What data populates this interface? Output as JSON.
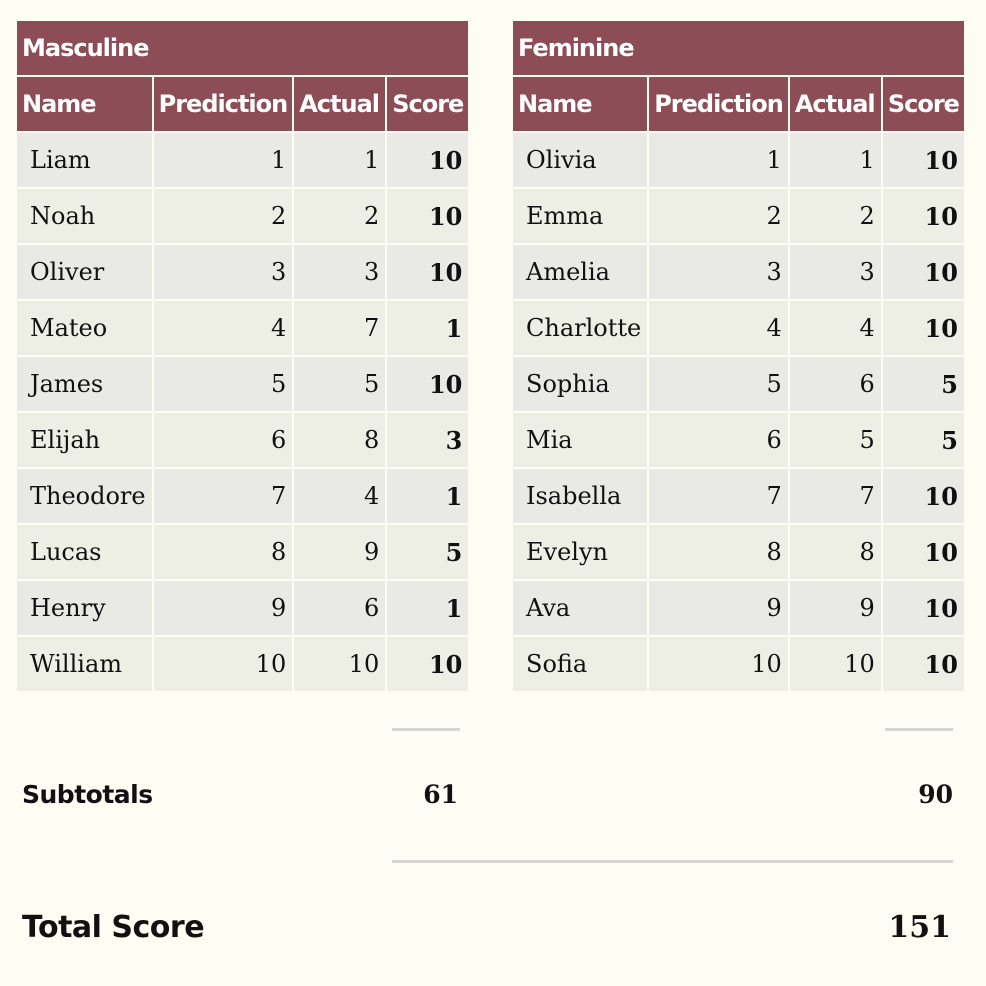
{
  "masculine": {
    "title": "Masculine",
    "headers": [
      "Name",
      "Prediction",
      "Actual",
      "Score"
    ],
    "rows": [
      [
        "Liam",
        "1",
        "1",
        "10"
      ],
      [
        "Noah",
        "2",
        "2",
        "10"
      ],
      [
        "Oliver",
        "3",
        "3",
        "10"
      ],
      [
        "Mateo",
        "4",
        "7",
        "1"
      ],
      [
        "James",
        "5",
        "5",
        "10"
      ],
      [
        "Elijah",
        "6",
        "8",
        "3"
      ],
      [
        "Theodore",
        "7",
        "4",
        "1"
      ],
      [
        "Lucas",
        "8",
        "9",
        "5"
      ],
      [
        "Henry",
        "9",
        "6",
        "1"
      ],
      [
        "William",
        "10",
        "10",
        "10"
      ]
    ],
    "subtotal": "61"
  },
  "feminine": {
    "title": "Feminine",
    "headers": [
      "Name",
      "Prediction",
      "Actual",
      "Score"
    ],
    "rows": [
      [
        "Olivia",
        "1",
        "1",
        "10"
      ],
      [
        "Emma",
        "2",
        "2",
        "10"
      ],
      [
        "Amelia",
        "3",
        "3",
        "10"
      ],
      [
        "Charlotte",
        "4",
        "4",
        "10"
      ],
      [
        "Sophia",
        "5",
        "6",
        "5"
      ],
      [
        "Mia",
        "6",
        "5",
        "5"
      ],
      [
        "Isabella",
        "7",
        "7",
        "10"
      ],
      [
        "Evelyn",
        "8",
        "8",
        "10"
      ],
      [
        "Ava",
        "9",
        "9",
        "10"
      ],
      [
        "Sofia",
        "10",
        "10",
        "10"
      ]
    ],
    "subtotal": "90"
  },
  "summary": {
    "subtotals_label": "Subtotals",
    "total_label": "Total Score",
    "total": "151"
  },
  "colors": {
    "header_bg": "#8c4d57",
    "page_bg": "#fdfdf4",
    "row_odd": "#e9e9e6",
    "row_even": "#eeefe4"
  }
}
